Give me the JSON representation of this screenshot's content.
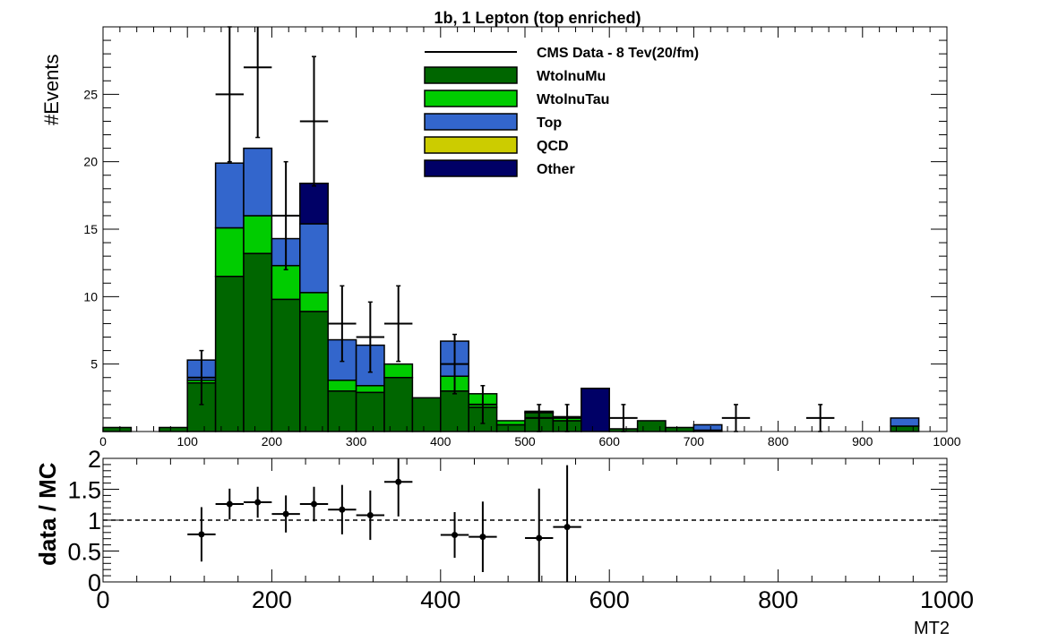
{
  "chart_data": [
    {
      "type": "bar",
      "subtype": "stacked-histogram-with-data-points",
      "title": "1b, 1 Lepton (top enriched)",
      "xlabel": "",
      "ylabel": "#Events",
      "xlim": [
        0,
        1000
      ],
      "ylim": [
        0,
        30
      ],
      "bin_width": 33.3333,
      "x_ticks": [
        "0",
        "100",
        "200",
        "300",
        "400",
        "500",
        "600",
        "700",
        "800",
        "900",
        "1000"
      ],
      "y_ticks": [
        "5",
        "10",
        "15",
        "20",
        "25"
      ],
      "legend": {
        "placement": "top-center",
        "entries": [
          {
            "label": "CMS Data - 8 Tev(20/fm)",
            "kind": "line",
            "color": "#000000"
          },
          {
            "label": "WtolnuMu",
            "kind": "fill",
            "color": "#006600"
          },
          {
            "label": "WtolnuTau",
            "kind": "fill",
            "color": "#00cc00"
          },
          {
            "label": "Top",
            "kind": "fill",
            "color": "#3366cc"
          },
          {
            "label": "QCD",
            "kind": "fill",
            "color": "#cccc00"
          },
          {
            "label": "Other",
            "kind": "fill",
            "color": "#000066"
          }
        ]
      },
      "bin_edges": [
        0,
        33.3333,
        66.6667,
        100,
        133.3333,
        166.6667,
        200,
        233.3333,
        266.6667,
        300,
        333.3333,
        366.6667,
        400,
        433.3333,
        466.6667,
        500,
        533.3333,
        566.6667,
        600,
        633.3333,
        666.6667,
        700,
        733.3333,
        766.6667,
        800,
        833.3333,
        866.6667,
        900,
        933.3333,
        966.6667,
        1000
      ],
      "stack_order": [
        "WtolnuMu",
        "WtolnuTau",
        "Top",
        "QCD",
        "Other"
      ],
      "series": [
        {
          "name": "WtolnuMu",
          "color": "#006600",
          "values": [
            0.3,
            0,
            0.3,
            3.6,
            11.5,
            13.2,
            9.8,
            8.9,
            3.0,
            2.9,
            4.0,
            2.5,
            3.0,
            1.8,
            0.5,
            1.4,
            0.8,
            0,
            0.2,
            0.8,
            0.3,
            0.1,
            0,
            0,
            0,
            0,
            0,
            0,
            0.4,
            0
          ]
        },
        {
          "name": "WtolnuTau",
          "color": "#00cc00",
          "values": [
            0,
            0,
            0,
            0.2,
            3.6,
            2.8,
            2.5,
            1.4,
            0.8,
            0.5,
            1.0,
            0,
            1.1,
            1.0,
            0.3,
            0.1,
            0.3,
            0,
            0,
            0,
            0,
            0,
            0,
            0,
            0,
            0,
            0,
            0,
            0,
            0
          ]
        },
        {
          "name": "Top",
          "color": "#3366cc",
          "values": [
            0,
            0,
            0,
            1.5,
            4.8,
            5.0,
            2.0,
            5.1,
            3.0,
            3.0,
            0,
            0,
            2.6,
            0,
            0,
            0,
            0,
            0,
            0,
            0,
            0,
            0.4,
            0,
            0,
            0,
            0,
            0,
            0,
            0.6,
            0
          ]
        },
        {
          "name": "QCD",
          "color": "#cccc00",
          "values": [
            0,
            0,
            0,
            0,
            0,
            0,
            0,
            0,
            0,
            0,
            0,
            0,
            0,
            0,
            0,
            0,
            0,
            0,
            0,
            0,
            0,
            0,
            0,
            0,
            0,
            0,
            0,
            0,
            0,
            0
          ]
        },
        {
          "name": "Other",
          "color": "#000066",
          "values": [
            0,
            0,
            0,
            0,
            0,
            0,
            0,
            3.0,
            0,
            0,
            0,
            0,
            0,
            0,
            0,
            0,
            0,
            3.2,
            0,
            0,
            0,
            0,
            0,
            0,
            0,
            0,
            0,
            0,
            0,
            0
          ]
        }
      ],
      "data_points": [
        {
          "x": 116.7,
          "y": 4,
          "err": 2
        },
        {
          "x": 150,
          "y": 25,
          "err": 5
        },
        {
          "x": 183.3,
          "y": 27,
          "err": 5.2
        },
        {
          "x": 216.7,
          "y": 16,
          "err": 4
        },
        {
          "x": 250,
          "y": 23,
          "err": 4.8
        },
        {
          "x": 283.3,
          "y": 8,
          "err": 2.8
        },
        {
          "x": 316.7,
          "y": 7,
          "err": 2.6
        },
        {
          "x": 350,
          "y": 8,
          "err": 2.8
        },
        {
          "x": 416.7,
          "y": 5,
          "err": 2.2
        },
        {
          "x": 450,
          "y": 2,
          "err": 1.4
        },
        {
          "x": 516.7,
          "y": 1,
          "err": 1
        },
        {
          "x": 550,
          "y": 1,
          "err": 1
        },
        {
          "x": 616.7,
          "y": 1,
          "err": 1
        },
        {
          "x": 750,
          "y": 1,
          "err": 1
        },
        {
          "x": 850,
          "y": 1,
          "err": 1
        }
      ]
    },
    {
      "type": "scatter",
      "subtype": "ratio-with-error-bars",
      "title": "",
      "xlabel": "MT2",
      "ylabel": "data / MC",
      "xlim": [
        0,
        1000
      ],
      "ylim": [
        0,
        2
      ],
      "x_ticks": [
        "0",
        "200",
        "400",
        "600",
        "800",
        "1000"
      ],
      "y_ticks": [
        "0",
        "0.5",
        "1",
        "1.5",
        "2"
      ],
      "reference_line": {
        "y": 1,
        "style": "dashed"
      },
      "points": [
        {
          "x": 116.7,
          "y": 0.77,
          "err": 0.44
        },
        {
          "x": 150,
          "y": 1.26,
          "err": 0.25
        },
        {
          "x": 183.3,
          "y": 1.29,
          "err": 0.25
        },
        {
          "x": 216.7,
          "y": 1.1,
          "err": 0.3
        },
        {
          "x": 250,
          "y": 1.26,
          "err": 0.28
        },
        {
          "x": 283.3,
          "y": 1.17,
          "err": 0.4
        },
        {
          "x": 316.7,
          "y": 1.08,
          "err": 0.4
        },
        {
          "x": 350,
          "y": 1.62,
          "err": 0.56
        },
        {
          "x": 416.7,
          "y": 0.76,
          "err": 0.37
        },
        {
          "x": 450,
          "y": 0.73,
          "err": 0.57
        },
        {
          "x": 516.7,
          "y": 0.71,
          "err": 0.8
        },
        {
          "x": 550,
          "y": 0.89,
          "err": 1.0
        }
      ]
    }
  ]
}
